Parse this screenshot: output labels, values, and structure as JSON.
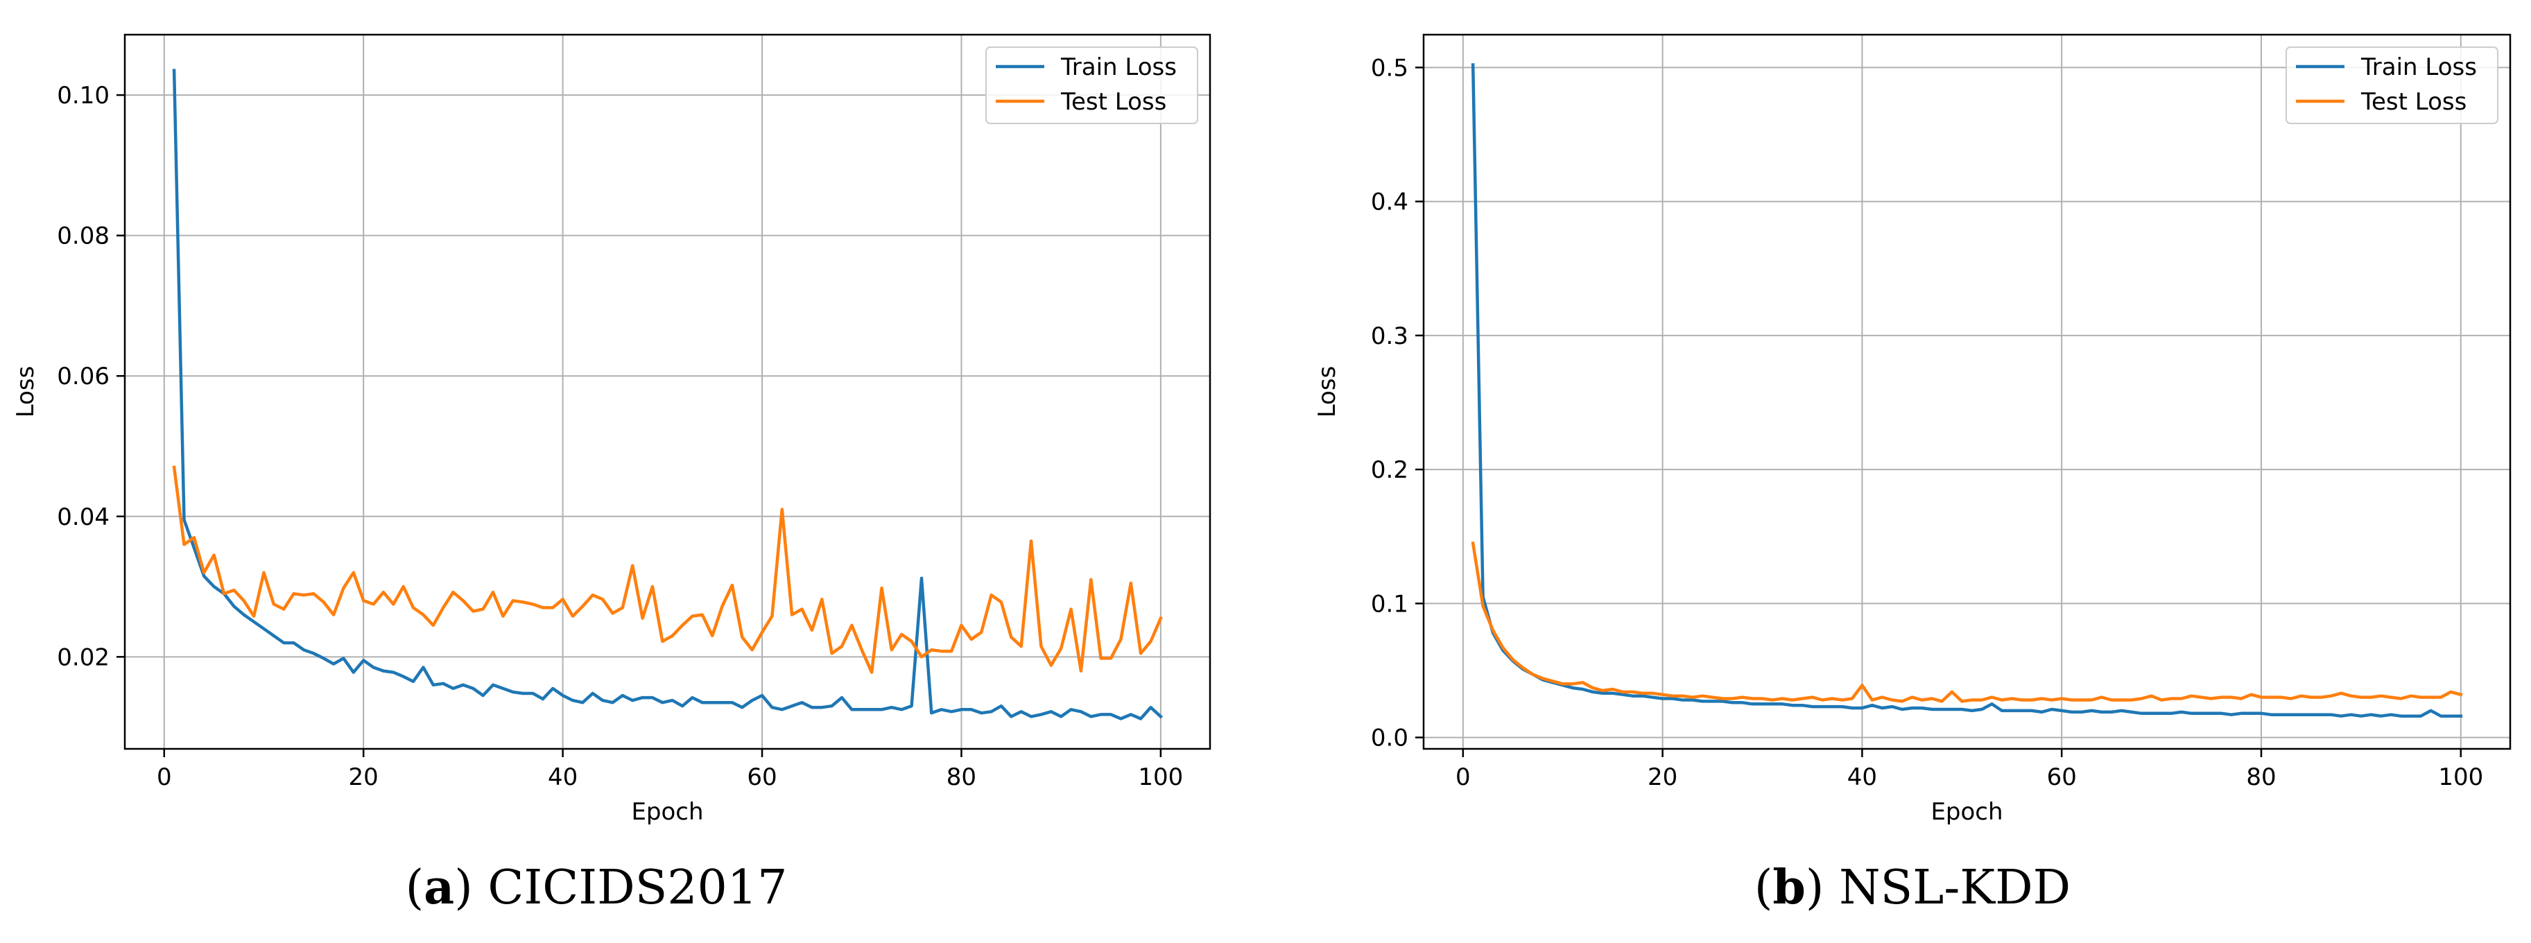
{
  "colors": {
    "train": "#1f77b4",
    "test": "#ff7f0e",
    "grid": "#b0b0b0"
  },
  "chart_data": [
    {
      "type": "line",
      "caption": {
        "prefix": "(",
        "letter": "a",
        "suffix": ")",
        "name": "CICIDS2017"
      },
      "xlabel": "Epoch",
      "ylabel": "Loss",
      "xlim": [
        -3.95,
        104.95
      ],
      "ylim": [
        0.0069,
        0.1086
      ],
      "xticks": [
        0,
        20,
        40,
        60,
        80,
        100
      ],
      "xtick_labels": [
        "0",
        "20",
        "40",
        "60",
        "80",
        "100"
      ],
      "yticks": [
        0.02,
        0.04,
        0.06,
        0.08,
        0.1
      ],
      "ytick_labels": [
        "0.02",
        "0.04",
        "0.06",
        "0.08",
        "0.10"
      ],
      "grid": true,
      "legend": "top-right",
      "series": [
        {
          "name": "Train Loss",
          "color": "#1f77b4",
          "x": [
            1,
            2,
            3,
            4,
            5,
            6,
            7,
            8,
            9,
            10,
            11,
            12,
            13,
            14,
            15,
            16,
            17,
            18,
            19,
            20,
            21,
            22,
            23,
            24,
            25,
            26,
            27,
            28,
            29,
            30,
            31,
            32,
            33,
            34,
            35,
            36,
            37,
            38,
            39,
            40,
            41,
            42,
            43,
            44,
            45,
            46,
            47,
            48,
            49,
            50,
            51,
            52,
            53,
            54,
            55,
            56,
            57,
            58,
            59,
            60,
            61,
            62,
            63,
            64,
            65,
            66,
            67,
            68,
            69,
            70,
            71,
            72,
            73,
            74,
            75,
            76,
            77,
            78,
            79,
            80,
            81,
            82,
            83,
            84,
            85,
            86,
            87,
            88,
            89,
            90,
            91,
            92,
            93,
            94,
            95,
            96,
            97,
            98,
            99,
            100
          ],
          "values": [
            0.1035,
            0.0395,
            0.0355,
            0.0315,
            0.03,
            0.029,
            0.0272,
            0.026,
            0.025,
            0.024,
            0.023,
            0.022,
            0.022,
            0.021,
            0.0205,
            0.0198,
            0.019,
            0.0198,
            0.0178,
            0.0195,
            0.0185,
            0.018,
            0.0178,
            0.0172,
            0.0165,
            0.0185,
            0.016,
            0.0162,
            0.0155,
            0.016,
            0.0155,
            0.0145,
            0.016,
            0.0155,
            0.015,
            0.0148,
            0.0148,
            0.014,
            0.0155,
            0.0145,
            0.0138,
            0.0135,
            0.0148,
            0.0138,
            0.0135,
            0.0145,
            0.0138,
            0.0142,
            0.0142,
            0.0135,
            0.0138,
            0.013,
            0.0142,
            0.0135,
            0.0135,
            0.0135,
            0.0135,
            0.0128,
            0.0138,
            0.0145,
            0.0128,
            0.0125,
            0.013,
            0.0135,
            0.0128,
            0.0128,
            0.013,
            0.0142,
            0.0125,
            0.0125,
            0.0125,
            0.0125,
            0.0128,
            0.0125,
            0.013,
            0.0312,
            0.012,
            0.0125,
            0.0122,
            0.0125,
            0.0125,
            0.012,
            0.0122,
            0.013,
            0.0115,
            0.0122,
            0.0115,
            0.0118,
            0.0122,
            0.0115,
            0.0125,
            0.0122,
            0.0115,
            0.0118,
            0.0118,
            0.0112,
            0.0118,
            0.0112,
            0.0128,
            0.0115
          ]
        },
        {
          "name": "Test Loss",
          "color": "#ff7f0e",
          "x": [
            1,
            2,
            3,
            4,
            5,
            6,
            7,
            8,
            9,
            10,
            11,
            12,
            13,
            14,
            15,
            16,
            17,
            18,
            19,
            20,
            21,
            22,
            23,
            24,
            25,
            26,
            27,
            28,
            29,
            30,
            31,
            32,
            33,
            34,
            35,
            36,
            37,
            38,
            39,
            40,
            41,
            42,
            43,
            44,
            45,
            46,
            47,
            48,
            49,
            50,
            51,
            52,
            53,
            54,
            55,
            56,
            57,
            58,
            59,
            60,
            61,
            62,
            63,
            64,
            65,
            66,
            67,
            68,
            69,
            70,
            71,
            72,
            73,
            74,
            75,
            76,
            77,
            78,
            79,
            80,
            81,
            82,
            83,
            84,
            85,
            86,
            87,
            88,
            89,
            90,
            91,
            92,
            93,
            94,
            95,
            96,
            97,
            98,
            99,
            100
          ],
          "values": [
            0.047,
            0.036,
            0.037,
            0.032,
            0.0345,
            0.029,
            0.0295,
            0.028,
            0.0258,
            0.032,
            0.0275,
            0.0268,
            0.029,
            0.0288,
            0.029,
            0.0278,
            0.026,
            0.0298,
            0.032,
            0.028,
            0.0275,
            0.0292,
            0.0275,
            0.03,
            0.027,
            0.026,
            0.0245,
            0.027,
            0.0292,
            0.028,
            0.0265,
            0.0268,
            0.0292,
            0.0258,
            0.028,
            0.0278,
            0.0275,
            0.027,
            0.027,
            0.0282,
            0.0258,
            0.0272,
            0.0288,
            0.0282,
            0.0262,
            0.027,
            0.033,
            0.0255,
            0.03,
            0.0222,
            0.023,
            0.0245,
            0.0258,
            0.026,
            0.023,
            0.0272,
            0.0302,
            0.0228,
            0.021,
            0.0235,
            0.0258,
            0.041,
            0.026,
            0.0268,
            0.0238,
            0.0282,
            0.0205,
            0.0215,
            0.0245,
            0.021,
            0.0178,
            0.0298,
            0.021,
            0.0232,
            0.0222,
            0.02,
            0.021,
            0.0208,
            0.0208,
            0.0245,
            0.0225,
            0.0235,
            0.0288,
            0.0278,
            0.0228,
            0.0215,
            0.0365,
            0.0215,
            0.0188,
            0.0212,
            0.0268,
            0.018,
            0.031,
            0.0198,
            0.0198,
            0.0225,
            0.0305,
            0.0205,
            0.0222,
            0.0255
          ]
        }
      ]
    },
    {
      "type": "line",
      "caption": {
        "prefix": "(",
        "letter": "b",
        "suffix": ")",
        "name": "NSL-KDD"
      },
      "xlabel": "Epoch",
      "ylabel": "Loss",
      "xlim": [
        -3.95,
        104.95
      ],
      "ylim": [
        -0.0085,
        0.5245
      ],
      "xticks": [
        0,
        20,
        40,
        60,
        80,
        100
      ],
      "xtick_labels": [
        "0",
        "20",
        "40",
        "60",
        "80",
        "100"
      ],
      "yticks": [
        0.0,
        0.1,
        0.2,
        0.3,
        0.4,
        0.5
      ],
      "ytick_labels": [
        "0.0",
        "0.1",
        "0.2",
        "0.3",
        "0.4",
        "0.5"
      ],
      "grid": true,
      "legend": "top-right",
      "series": [
        {
          "name": "Train Loss",
          "color": "#1f77b4",
          "x": [
            1,
            2,
            3,
            4,
            5,
            6,
            7,
            8,
            9,
            10,
            11,
            12,
            13,
            14,
            15,
            16,
            17,
            18,
            19,
            20,
            21,
            22,
            23,
            24,
            25,
            26,
            27,
            28,
            29,
            30,
            31,
            32,
            33,
            34,
            35,
            36,
            37,
            38,
            39,
            40,
            41,
            42,
            43,
            44,
            45,
            46,
            47,
            48,
            49,
            50,
            51,
            52,
            53,
            54,
            55,
            56,
            57,
            58,
            59,
            60,
            61,
            62,
            63,
            64,
            65,
            66,
            67,
            68,
            69,
            70,
            71,
            72,
            73,
            74,
            75,
            76,
            77,
            78,
            79,
            80,
            81,
            82,
            83,
            84,
            85,
            86,
            87,
            88,
            89,
            90,
            91,
            92,
            93,
            94,
            95,
            96,
            97,
            98,
            99,
            100
          ],
          "values": [
            0.502,
            0.105,
            0.078,
            0.065,
            0.057,
            0.051,
            0.047,
            0.043,
            0.041,
            0.039,
            0.037,
            0.036,
            0.034,
            0.033,
            0.033,
            0.032,
            0.031,
            0.031,
            0.03,
            0.029,
            0.029,
            0.028,
            0.028,
            0.027,
            0.027,
            0.027,
            0.026,
            0.026,
            0.025,
            0.025,
            0.025,
            0.025,
            0.024,
            0.024,
            0.023,
            0.023,
            0.023,
            0.023,
            0.022,
            0.022,
            0.024,
            0.022,
            0.023,
            0.021,
            0.022,
            0.022,
            0.021,
            0.021,
            0.021,
            0.021,
            0.02,
            0.021,
            0.025,
            0.02,
            0.02,
            0.02,
            0.02,
            0.019,
            0.021,
            0.02,
            0.019,
            0.019,
            0.02,
            0.019,
            0.019,
            0.02,
            0.019,
            0.018,
            0.018,
            0.018,
            0.018,
            0.019,
            0.018,
            0.018,
            0.018,
            0.018,
            0.017,
            0.018,
            0.018,
            0.018,
            0.017,
            0.017,
            0.017,
            0.017,
            0.017,
            0.017,
            0.017,
            0.016,
            0.017,
            0.016,
            0.017,
            0.016,
            0.017,
            0.016,
            0.016,
            0.016,
            0.02,
            0.016,
            0.016,
            0.016
          ]
        },
        {
          "name": "Test Loss",
          "color": "#ff7f0e",
          "x": [
            1,
            2,
            3,
            4,
            5,
            6,
            7,
            8,
            9,
            10,
            11,
            12,
            13,
            14,
            15,
            16,
            17,
            18,
            19,
            20,
            21,
            22,
            23,
            24,
            25,
            26,
            27,
            28,
            29,
            30,
            31,
            32,
            33,
            34,
            35,
            36,
            37,
            38,
            39,
            40,
            41,
            42,
            43,
            44,
            45,
            46,
            47,
            48,
            49,
            50,
            51,
            52,
            53,
            54,
            55,
            56,
            57,
            58,
            59,
            60,
            61,
            62,
            63,
            64,
            65,
            66,
            67,
            68,
            69,
            70,
            71,
            72,
            73,
            74,
            75,
            76,
            77,
            78,
            79,
            80,
            81,
            82,
            83,
            84,
            85,
            86,
            87,
            88,
            89,
            90,
            91,
            92,
            93,
            94,
            95,
            96,
            97,
            98,
            99,
            100
          ],
          "values": [
            0.145,
            0.098,
            0.08,
            0.067,
            0.058,
            0.052,
            0.047,
            0.044,
            0.042,
            0.04,
            0.04,
            0.041,
            0.037,
            0.035,
            0.036,
            0.034,
            0.034,
            0.033,
            0.033,
            0.032,
            0.031,
            0.031,
            0.03,
            0.031,
            0.03,
            0.029,
            0.029,
            0.03,
            0.029,
            0.029,
            0.028,
            0.029,
            0.028,
            0.029,
            0.03,
            0.028,
            0.029,
            0.028,
            0.029,
            0.039,
            0.028,
            0.03,
            0.028,
            0.027,
            0.03,
            0.028,
            0.029,
            0.027,
            0.034,
            0.027,
            0.028,
            0.028,
            0.03,
            0.028,
            0.029,
            0.028,
            0.028,
            0.029,
            0.028,
            0.029,
            0.028,
            0.028,
            0.028,
            0.03,
            0.028,
            0.028,
            0.028,
            0.029,
            0.031,
            0.028,
            0.029,
            0.029,
            0.031,
            0.03,
            0.029,
            0.03,
            0.03,
            0.029,
            0.032,
            0.03,
            0.03,
            0.03,
            0.029,
            0.031,
            0.03,
            0.03,
            0.031,
            0.033,
            0.031,
            0.03,
            0.03,
            0.031,
            0.03,
            0.029,
            0.031,
            0.03,
            0.03,
            0.03,
            0.034,
            0.032
          ]
        }
      ]
    }
  ]
}
